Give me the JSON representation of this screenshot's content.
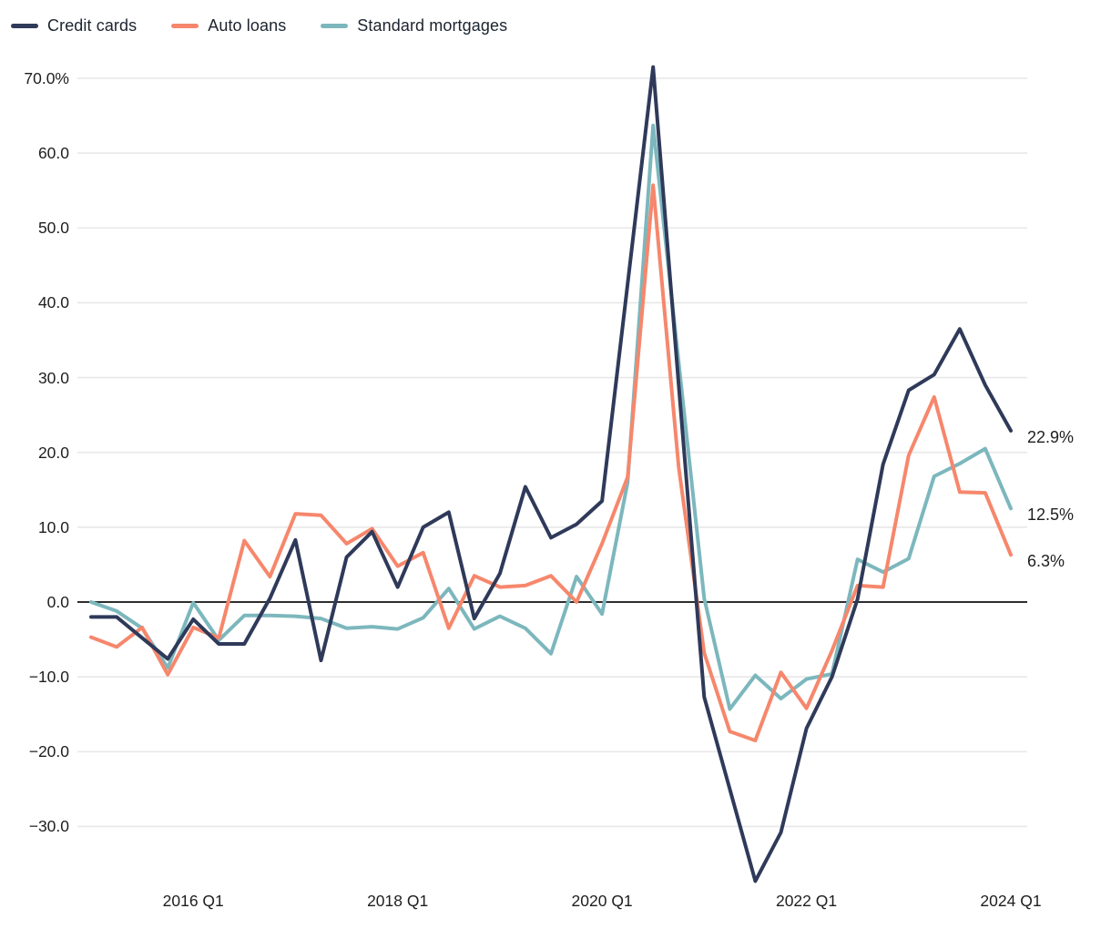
{
  "chart_data": {
    "type": "line",
    "title": "",
    "categories": [
      "2015 Q1",
      "2015 Q2",
      "2015 Q3",
      "2015 Q4",
      "2016 Q1",
      "2016 Q2",
      "2016 Q3",
      "2016 Q4",
      "2017 Q1",
      "2017 Q2",
      "2017 Q3",
      "2017 Q4",
      "2018 Q1",
      "2018 Q2",
      "2018 Q3",
      "2018 Q4",
      "2019 Q1",
      "2019 Q2",
      "2019 Q3",
      "2019 Q4",
      "2020 Q1",
      "2020 Q2",
      "2020 Q3",
      "2020 Q4",
      "2021 Q1",
      "2021 Q2",
      "2021 Q3",
      "2021 Q4",
      "2022 Q1",
      "2022 Q2",
      "2022 Q3",
      "2022 Q4",
      "2023 Q1",
      "2023 Q2",
      "2023 Q3",
      "2023 Q4",
      "2024 Q1"
    ],
    "series": [
      {
        "name": "Credit cards",
        "color": "#2f3a5a",
        "end_label": "22.9%",
        "values": [
          -2.0,
          -2.0,
          -4.8,
          -7.6,
          -2.3,
          -5.6,
          -5.6,
          0.5,
          8.3,
          -7.8,
          6.0,
          9.4,
          2.0,
          10.0,
          12.0,
          -2.2,
          3.8,
          15.4,
          8.6,
          10.4,
          13.5,
          42.5,
          71.5,
          29.0,
          -12.7,
          -25.0,
          -37.3,
          -30.8,
          -16.9,
          -10.0,
          0.4,
          18.4,
          28.3,
          30.4,
          36.5,
          29.0,
          22.9
        ]
      },
      {
        "name": "Auto loans",
        "color": "#f6876c",
        "end_label": "6.3%",
        "values": [
          -4.7,
          -6.0,
          -3.4,
          -9.7,
          -3.4,
          -4.8,
          8.2,
          3.4,
          11.8,
          11.6,
          7.8,
          9.8,
          4.8,
          6.6,
          -3.5,
          3.5,
          2.0,
          2.2,
          3.5,
          0.0,
          7.8,
          16.7,
          55.7,
          18.0,
          -6.8,
          -17.3,
          -18.5,
          -9.4,
          -14.2,
          -6.5,
          2.2,
          2.0,
          19.6,
          27.4,
          14.7,
          14.6,
          6.3
        ]
      },
      {
        "name": "Standard mortgages",
        "color": "#7cb7bd",
        "end_label": "12.5%",
        "values": [
          0.0,
          -1.2,
          -3.5,
          -8.8,
          -0.1,
          -5.1,
          -1.8,
          -1.8,
          -1.9,
          -2.2,
          -3.5,
          -3.3,
          -3.6,
          -2.1,
          1.8,
          -3.6,
          -1.9,
          -3.5,
          -6.9,
          3.4,
          -1.6,
          16.0,
          63.7,
          32.0,
          0.5,
          -14.3,
          -9.8,
          -12.9,
          -10.3,
          -9.6,
          5.7,
          4.0,
          5.8,
          16.8,
          18.5,
          20.5,
          12.5
        ]
      }
    ],
    "y_axis": {
      "ticks": [
        {
          "value": 70,
          "label": "70.0%"
        },
        {
          "value": 60,
          "label": "60.0"
        },
        {
          "value": 50,
          "label": "50.0"
        },
        {
          "value": 40,
          "label": "40.0"
        },
        {
          "value": 30,
          "label": "30.0"
        },
        {
          "value": 20,
          "label": "20.0"
        },
        {
          "value": 10,
          "label": "10.0"
        },
        {
          "value": 0,
          "label": "0.0"
        },
        {
          "value": -10,
          "label": "−10.0"
        },
        {
          "value": -20,
          "label": "−20.0"
        },
        {
          "value": -30,
          "label": "−30.0"
        }
      ],
      "range": [
        -37.5,
        71.5
      ]
    },
    "x_axis": {
      "ticks": [
        {
          "index": 4,
          "label": "2016 Q1"
        },
        {
          "index": 12,
          "label": "2018 Q1"
        },
        {
          "index": 20,
          "label": "2020 Q1"
        },
        {
          "index": 28,
          "label": "2022 Q1"
        },
        {
          "index": 36,
          "label": "2024 Q1"
        }
      ]
    },
    "grid": {
      "on": true,
      "color": "#e8e8e8",
      "zero_line_color": "#2d2d2d"
    },
    "legend_position": "top-left",
    "background": "#ffffff"
  }
}
